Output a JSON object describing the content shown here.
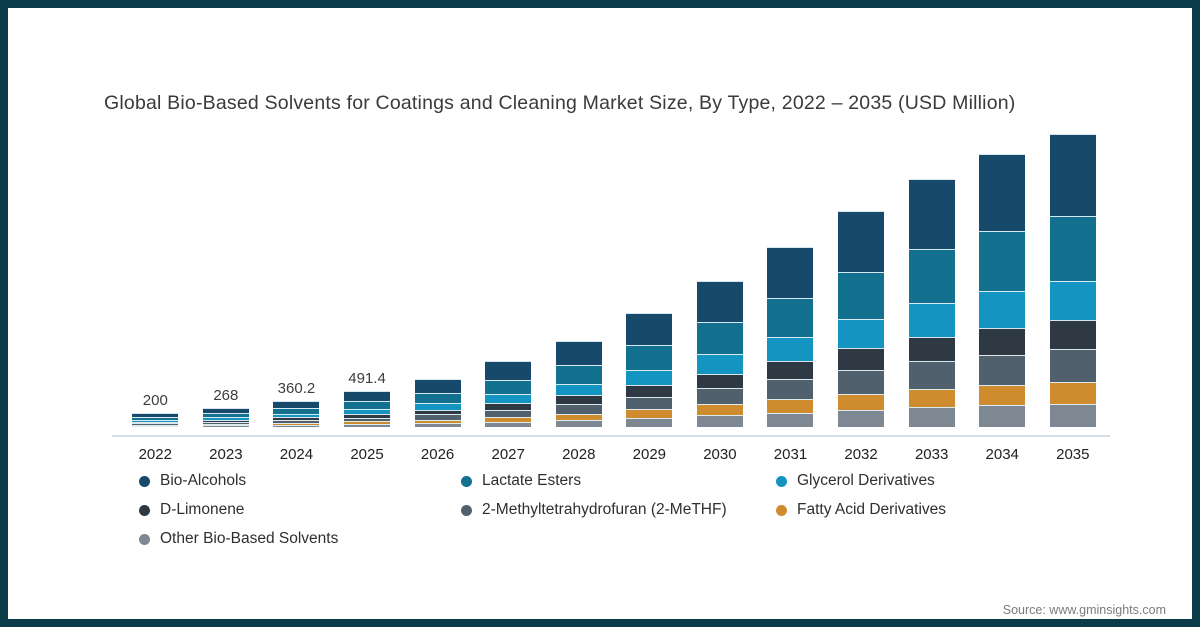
{
  "frame": {
    "border_color": "#0b3c49"
  },
  "title": "Global Bio-Based Solvents for Coatings and Cleaning Market Size, By Type, 2022 – 2035 (USD Million)",
  "source": "Source: www.gminsights.com",
  "chart_data": {
    "type": "bar",
    "stacked": true,
    "title": "Global Bio-Based Solvents for Coatings and Cleaning Market Size, By Type, 2022 – 2035 (USD Million)",
    "xlabel": "",
    "ylabel": "USD Million",
    "grid": false,
    "legend_position": "bottom",
    "axis_line_color": "#d7e0e6",
    "categories": [
      "2022",
      "2023",
      "2024",
      "2025",
      "2026",
      "2027",
      "2028",
      "2029",
      "2030",
      "2031",
      "2032",
      "2033",
      "2034",
      "2035"
    ],
    "bar_total_labels": [
      "200",
      "268",
      "360.2",
      "491.4",
      "",
      "",
      "",
      "",
      "",
      "",
      "",
      "",
      "",
      ""
    ],
    "totals_estimated": [
      200,
      268,
      360.2,
      491.4,
      660,
      905,
      1190,
      1570,
      2010,
      2470,
      2970,
      3410,
      3750,
      4030
    ],
    "series": [
      {
        "name": "Bio-Alcohols",
        "color": "#17496b",
        "values": [
          56,
          75,
          100.9,
          137.6,
          184.8,
          253.4,
          333.2,
          439.6,
          562.8,
          691.6,
          831.6,
          954.8,
          1050,
          1128.4
        ]
      },
      {
        "name": "Lactate Esters",
        "color": "#14708f",
        "values": [
          44,
          59,
          79.2,
          108.1,
          145.2,
          199.1,
          261.8,
          345.4,
          442.2,
          543.4,
          653.4,
          750.2,
          825,
          886.6
        ]
      },
      {
        "name": "Glycerol Derivatives",
        "color": "#1495c1",
        "values": [
          27,
          36.2,
          48.6,
          66.3,
          89.1,
          122.2,
          160.7,
          212,
          271.4,
          333.5,
          401,
          460.4,
          506.3,
          544.1
        ]
      },
      {
        "name": "D-Limonene",
        "color": "#2e3944",
        "values": [
          20,
          26.8,
          36,
          49.1,
          66,
          90.5,
          119,
          157,
          201,
          247,
          297,
          341,
          375,
          403
        ]
      },
      {
        "name": "2-Methyltetrahydrofuran (2-MeTHF)",
        "color": "#51606d",
        "values": [
          22,
          29.5,
          39.6,
          54.1,
          72.6,
          99.6,
          130.9,
          172.7,
          221.1,
          271.7,
          326.7,
          375.1,
          412.5,
          443.3
        ]
      },
      {
        "name": "Fatty Acid Derivatives",
        "color": "#cf8c2f",
        "values": [
          15,
          20.1,
          27,
          36.9,
          49.5,
          67.9,
          89.3,
          117.8,
          150.8,
          185.3,
          222.8,
          255.8,
          281.3,
          302.3
        ]
      },
      {
        "name": "Other Bio-Based Solvents",
        "color": "#7e8893",
        "values": [
          16,
          21.4,
          28.9,
          39.3,
          52.8,
          72.4,
          95.2,
          125.6,
          160.8,
          197.6,
          237.6,
          272.8,
          300,
          322.4
        ]
      }
    ]
  }
}
